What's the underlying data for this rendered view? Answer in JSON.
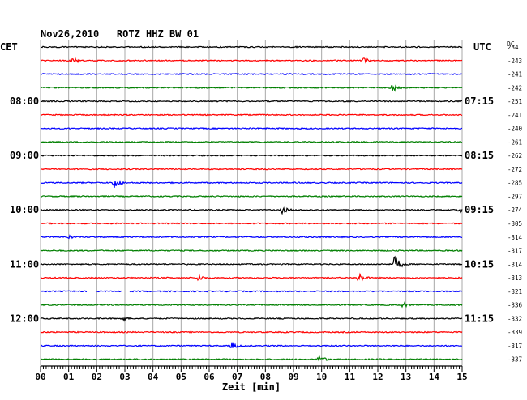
{
  "header": {
    "title": "Nov26,2010   ROTZ HHZ BW 01",
    "left_zone": "CET",
    "right_zone": "UTC",
    "dc_label": "DC"
  },
  "chart_data": {
    "type": "line",
    "title": "Nov26,2010   ROTZ HHZ BW 01",
    "xlabel": "Zeit [min]",
    "ylabel": "",
    "xlim": [
      0,
      15
    ],
    "x_ticks": [
      "00",
      "01",
      "02",
      "03",
      "04",
      "05",
      "06",
      "07",
      "08",
      "09",
      "10",
      "11",
      "12",
      "13",
      "14",
      "15"
    ],
    "left_time_labels": [
      {
        "row": 4,
        "label": "08:00"
      },
      {
        "row": 8,
        "label": "09:00"
      },
      {
        "row": 12,
        "label": "10:00"
      },
      {
        "row": 16,
        "label": "11:00"
      },
      {
        "row": 20,
        "label": "12:00"
      }
    ],
    "right_time_labels": [
      {
        "row": 4,
        "label": "07:15"
      },
      {
        "row": 8,
        "label": "08:15"
      },
      {
        "row": 12,
        "label": "09:15"
      },
      {
        "row": 16,
        "label": "10:15"
      },
      {
        "row": 20,
        "label": "11:15"
      }
    ],
    "dc_offsets": [
      234,
      -243,
      -241,
      -242,
      -251,
      -241,
      -240,
      -261,
      -262,
      -272,
      -285,
      -297,
      -274,
      -305,
      -314,
      -317,
      -314,
      -313,
      -321,
      -336,
      -332,
      -339,
      -317,
      -337
    ],
    "trace_colors": [
      "#000000",
      "#ff0000",
      "#0000ff",
      "#007f00"
    ],
    "events": [
      {
        "row": 1,
        "minute": 1.1,
        "amplitude": 6
      },
      {
        "row": 1,
        "minute": 11.5,
        "amplitude": 4
      },
      {
        "row": 3,
        "minute": 12.5,
        "amplitude": 7
      },
      {
        "row": 10,
        "minute": 2.6,
        "amplitude": 8
      },
      {
        "row": 12,
        "minute": 8.6,
        "amplitude": 5
      },
      {
        "row": 12,
        "minute": 14.9,
        "amplitude": 4
      },
      {
        "row": 14,
        "minute": 1.0,
        "amplitude": 3
      },
      {
        "row": 16,
        "minute": 12.6,
        "amplitude": 11
      },
      {
        "row": 17,
        "minute": 5.6,
        "amplitude": 5
      },
      {
        "row": 17,
        "minute": 11.3,
        "amplitude": 7
      },
      {
        "row": 19,
        "minute": 12.9,
        "amplitude": 4
      },
      {
        "row": 20,
        "minute": 2.9,
        "amplitude": 4
      },
      {
        "row": 22,
        "minute": 6.8,
        "amplitude": 6
      },
      {
        "row": 23,
        "minute": 9.9,
        "amplitude": 6
      }
    ],
    "gaps": [
      {
        "row": 18,
        "from": 1.65,
        "to": 1.95
      },
      {
        "row": 18,
        "from": 2.9,
        "to": 3.15
      }
    ]
  }
}
